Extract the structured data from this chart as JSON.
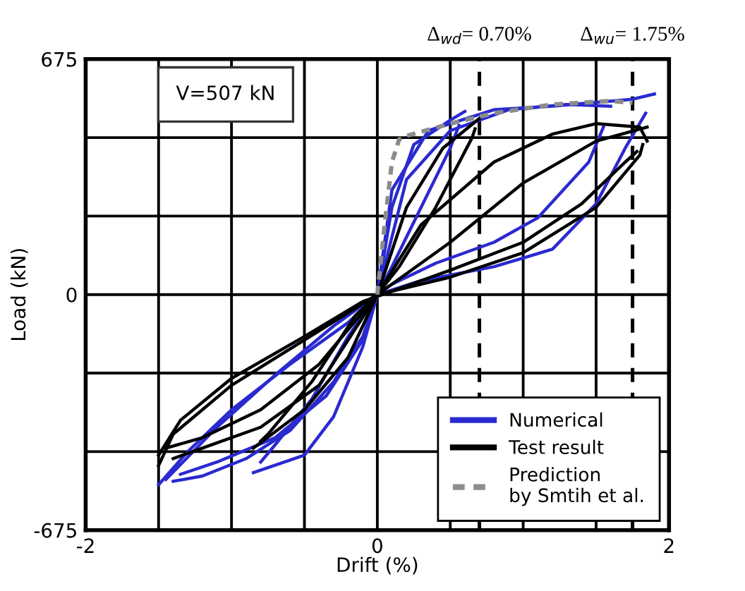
{
  "chart_data": {
    "type": "line",
    "xlabel": "Drift (%)",
    "ylabel": "Load (kN)",
    "xlim": [
      -2,
      2
    ],
    "ylim": [
      -675,
      675
    ],
    "xticks": [
      -2,
      {
        "value": -1.5,
        "label": null
      },
      {
        "value": -1,
        "label": null
      },
      {
        "value": -0.5,
        "label": null
      },
      0,
      {
        "value": 0.5,
        "label": null
      },
      {
        "value": 1,
        "label": null
      },
      {
        "value": 1.5,
        "label": null
      },
      2
    ],
    "yticks": [
      -675,
      {
        "value": -450,
        "label": null
      },
      {
        "value": -225,
        "label": null
      },
      0,
      {
        "value": 225,
        "label": null
      },
      {
        "value": 450,
        "label": null
      },
      675
    ],
    "grid": true,
    "legend": "bottom right",
    "series": [
      {
        "name": "Numerical",
        "color": "#2a2ad0",
        "line_style": "solid",
        "x": [
          -1.35,
          -1.1,
          -0.7,
          -0.35,
          -0.1,
          0,
          0.1,
          0.25,
          0.5,
          0.6
        ],
        "values": [
          -515,
          -480,
          -410,
          -290,
          -130,
          0,
          250,
          430,
          500,
          525
        ]
      },
      {
        "color": "#2a2ad0",
        "line_style": "solid",
        "x": [
          0.56,
          0.5,
          0.3,
          0.1,
          0,
          -0.1,
          -0.3,
          -0.5,
          -0.85
        ],
        "values": [
          485,
          420,
          250,
          80,
          0,
          -150,
          -350,
          -460,
          -510
        ]
      },
      {
        "color": "#2a2ad0",
        "line_style": "solid",
        "x": [
          -0.8,
          -0.7,
          -0.45,
          -0.2,
          0,
          0.1,
          0.35,
          0.8,
          1.2,
          1.75,
          1.9
        ],
        "values": [
          -480,
          -430,
          -300,
          -120,
          0,
          300,
          470,
          530,
          540,
          560,
          575
        ]
      },
      {
        "color": "#2a2ad0",
        "line_style": "solid",
        "x": [
          1.84,
          1.7,
          1.5,
          1.2,
          0.8,
          0.3,
          0,
          -0.2,
          -0.6,
          -1.0,
          -1.3,
          -1.5
        ],
        "values": [
          520,
          420,
          260,
          130,
          80,
          40,
          0,
          -80,
          -200,
          -330,
          -450,
          -545
        ]
      },
      {
        "color": "#2a2ad0",
        "line_style": "solid",
        "x": [
          -1.4,
          -1.2,
          -0.9,
          -0.6,
          -0.3,
          -0.1,
          0,
          0.2,
          0.5,
          0.9,
          1.3,
          1.6
        ],
        "values": [
          -535,
          -520,
          -470,
          -390,
          -250,
          -120,
          0,
          330,
          470,
          530,
          545,
          540
        ]
      },
      {
        "color": "#2a2ad0",
        "line_style": "solid",
        "x": [
          1.55,
          1.45,
          1.1,
          0.8,
          0.4,
          0.1,
          0,
          -0.3,
          -0.7,
          -1.1,
          -1.45
        ],
        "values": [
          480,
          380,
          220,
          150,
          90,
          30,
          0,
          -90,
          -230,
          -380,
          -530
        ]
      },
      {
        "name": "Test result",
        "color": "#000000",
        "line_style": "solid",
        "x": [
          -1.4,
          -1.2,
          -0.8,
          -0.4,
          0,
          0.2,
          0.45,
          0.7
        ],
        "values": [
          -470,
          -440,
          -380,
          -260,
          0,
          250,
          420,
          505
        ]
      },
      {
        "color": "#000000",
        "line_style": "solid",
        "x": [
          0.67,
          0.65,
          0.4,
          0.15,
          0,
          -0.2,
          -0.5,
          -0.85
        ],
        "values": [
          475,
          450,
          250,
          80,
          0,
          -180,
          -330,
          -440
        ]
      },
      {
        "color": "#000000",
        "line_style": "solid",
        "x": [
          -0.8,
          -0.75,
          -0.45,
          -0.15,
          0,
          0.3,
          0.8,
          1.2,
          1.5,
          1.8,
          1.85
        ],
        "values": [
          -420,
          -400,
          -250,
          -60,
          0,
          200,
          380,
          460,
          490,
          480,
          440
        ]
      },
      {
        "color": "#000000",
        "line_style": "solid",
        "x": [
          1.78,
          1.7,
          1.4,
          1.0,
          0.5,
          0.1,
          -0.1,
          -0.5,
          -1.0,
          -1.35,
          -1.5
        ],
        "values": [
          410,
          380,
          260,
          150,
          70,
          10,
          -20,
          -120,
          -240,
          -360,
          -460
        ]
      },
      {
        "color": "#000000",
        "line_style": "solid",
        "x": [
          -1.45,
          -1.2,
          -0.8,
          -0.4,
          0,
          0.5,
          1.0,
          1.5,
          1.85
        ],
        "values": [
          -440,
          -410,
          -330,
          -200,
          0,
          150,
          320,
          440,
          480
        ]
      },
      {
        "color": "#000000",
        "line_style": "solid",
        "x": [
          1.82,
          1.8,
          1.5,
          1.0,
          0.5,
          0,
          -0.5,
          -1.0,
          -1.4,
          -1.5
        ],
        "values": [
          430,
          400,
          250,
          120,
          50,
          0,
          -130,
          -260,
          -400,
          -490
        ]
      },
      {
        "name": "Prediction\nby Smtih et al.",
        "color": "#8c8c8c",
        "line_style": "dotted",
        "x": [
          0,
          0.05,
          0.1,
          0.15,
          0.2,
          0.5,
          0.8,
          1.2,
          1.6,
          1.75
        ],
        "values": [
          0,
          200,
          380,
          445,
          455,
          490,
          520,
          545,
          555,
          550
        ]
      }
    ],
    "ref_lines": [
      {
        "axis": "x",
        "value": 0.7,
        "label": "Δ$_{wd}$= 0.70%",
        "color": "#000000",
        "line_style": "dashed"
      },
      {
        "axis": "x",
        "value": 1.75,
        "label": "Δ$_{wu}$= 1.75%",
        "color": "#000000",
        "line_style": "dashed"
      }
    ],
    "annotations": [
      "V=507 kN"
    ]
  }
}
